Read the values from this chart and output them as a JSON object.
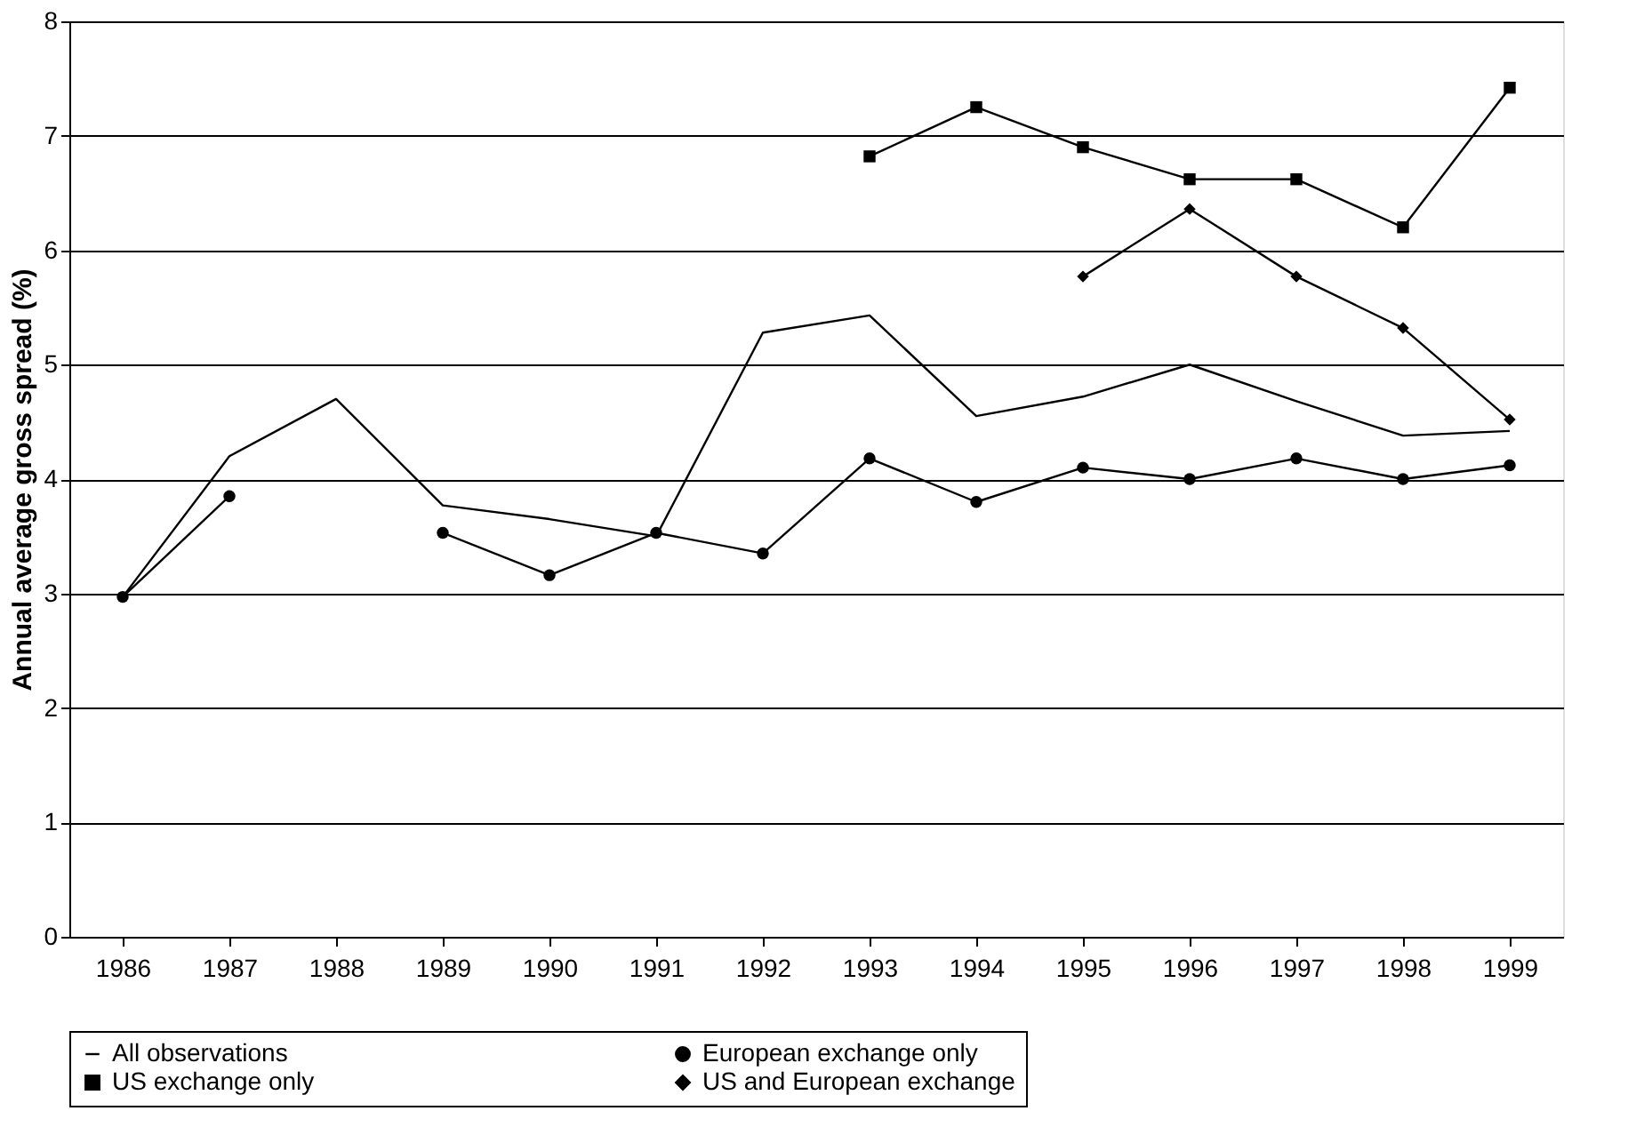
{
  "chart_data": {
    "type": "line",
    "ylabel": "Annual average gross spread (%)",
    "categories": [
      "1986",
      "1987",
      "1988",
      "1989",
      "1990",
      "1991",
      "1992",
      "1993",
      "1994",
      "1995",
      "1996",
      "1997",
      "1998",
      "1999"
    ],
    "series": [
      {
        "name": "All observations",
        "color": "#000000",
        "marker": "none",
        "values": [
          2.97,
          4.2,
          4.7,
          3.77,
          3.65,
          3.5,
          5.28,
          5.43,
          4.55,
          4.72,
          5.0,
          4.68,
          4.38,
          4.42
        ]
      },
      {
        "name": "European exchange only",
        "color": "#000000",
        "marker": "circle",
        "values": [
          2.97,
          3.85,
          null,
          3.53,
          3.16,
          3.53,
          3.35,
          4.18,
          3.8,
          4.1,
          4.0,
          4.18,
          4.0,
          4.12
        ]
      },
      {
        "name": "US exchange only",
        "color": "#000000",
        "marker": "square",
        "values": [
          null,
          null,
          null,
          null,
          null,
          null,
          null,
          6.82,
          7.25,
          6.9,
          6.62,
          6.62,
          6.2,
          7.42
        ]
      },
      {
        "name": "US and European exchange",
        "color": "#000000",
        "marker": "diamond",
        "values": [
          null,
          null,
          null,
          null,
          null,
          null,
          null,
          null,
          null,
          5.77,
          6.36,
          5.77,
          5.32,
          4.52
        ]
      }
    ],
    "ylim": [
      0,
      8
    ],
    "yticks": [
      0,
      1,
      2,
      3,
      4,
      5,
      6,
      7,
      8
    ],
    "grid": "y",
    "legend": "bottom"
  }
}
